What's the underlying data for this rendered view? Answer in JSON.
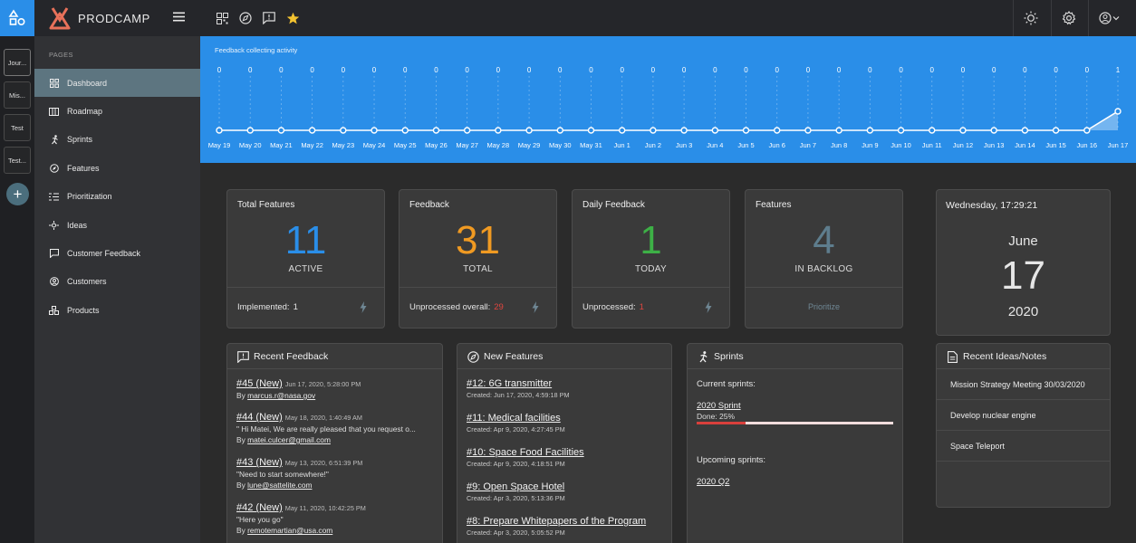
{
  "app": {
    "brand": "PRODCAMP"
  },
  "workspaces": [
    {
      "label": "Jour..."
    },
    {
      "label": "Mis..."
    },
    {
      "label": "Test"
    },
    {
      "label": "Test..."
    }
  ],
  "sidebar": {
    "section_label": "PAGES",
    "items": [
      {
        "label": "Dashboard",
        "icon": "dashboard-icon",
        "active": true
      },
      {
        "label": "Roadmap",
        "icon": "roadmap-icon"
      },
      {
        "label": "Sprints",
        "icon": "runner-icon"
      },
      {
        "label": "Features",
        "icon": "compass-icon"
      },
      {
        "label": "Prioritization",
        "icon": "prioritization-icon"
      },
      {
        "label": "Ideas",
        "icon": "ideas-icon"
      },
      {
        "label": "Customer Feedback",
        "icon": "feedback-icon"
      },
      {
        "label": "Customers",
        "icon": "user-icon"
      },
      {
        "label": "Products",
        "icon": "products-icon"
      }
    ]
  },
  "topbar": {
    "left_icons": [
      "grid-icon",
      "compass-icon",
      "feedback-icon",
      "star-icon"
    ],
    "right_icons": [
      "sun-icon",
      "gear-icon",
      "user-menu-icon"
    ]
  },
  "activity": {
    "title": "Feedback collecting activity",
    "dates": [
      "May 19",
      "May 20",
      "May 21",
      "May 22",
      "May 23",
      "May 24",
      "May 25",
      "May 26",
      "May 27",
      "May 28",
      "May 29",
      "May 30",
      "May 31",
      "Jun 1",
      "Jun 2",
      "Jun 3",
      "Jun 4",
      "Jun 5",
      "Jun 6",
      "Jun 7",
      "Jun 8",
      "Jun 9",
      "Jun 10",
      "Jun 11",
      "Jun 12",
      "Jun 13",
      "Jun 14",
      "Jun 15",
      "Jun 16",
      "Jun 17"
    ],
    "values": [
      0,
      0,
      0,
      0,
      0,
      0,
      0,
      0,
      0,
      0,
      0,
      0,
      0,
      0,
      0,
      0,
      0,
      0,
      0,
      0,
      0,
      0,
      0,
      0,
      0,
      0,
      0,
      0,
      0,
      1
    ]
  },
  "stats": [
    {
      "title": "Total Features",
      "value": "11",
      "sub": "ACTIVE",
      "color": "#2a8ee8",
      "foot_label": "Implemented:",
      "foot_value": "1",
      "foot_color": "#e6e6e6"
    },
    {
      "title": "Feedback",
      "value": "31",
      "sub": "TOTAL",
      "color": "#f09a22",
      "foot_label": "Unprocessed overall:",
      "foot_value": "29",
      "foot_color": "#e0463f"
    },
    {
      "title": "Daily Feedback",
      "value": "1",
      "sub": "TODAY",
      "color": "#3db046",
      "foot_label": "Unprocessed:",
      "foot_value": "1",
      "foot_color": "#e0463f"
    },
    {
      "title": "Features",
      "value": "4",
      "sub": "IN BACKLOG",
      "color": "#5e7d8d",
      "foot_action": "Prioritize"
    }
  ],
  "clock": {
    "time": "Wednesday, 17:29:21",
    "month": "June",
    "day": "17",
    "year": "2020"
  },
  "recent_feedback": {
    "title": "Recent Feedback",
    "items": [
      {
        "link": "#45 (New)",
        "date": "Jun 17, 2020, 5:28:00 PM",
        "by_prefix": "By",
        "by": "marcus.r@nasa.gov"
      },
      {
        "link": "#44 (New)",
        "date": "May 18, 2020, 1:40:49 AM",
        "quote": "\" Hi Matei, We are really pleased that you request o...",
        "by_prefix": "By",
        "by": "matei.culcer@gmail.com"
      },
      {
        "link": "#43 (New)",
        "date": "May 13, 2020, 6:51:39 PM",
        "quote": "\"Need to start somewhere!\"",
        "by_prefix": "By",
        "by": "lune@sattelite.com"
      },
      {
        "link": "#42 (New)",
        "date": "May 11, 2020, 10:42:25 PM",
        "quote": "\"Here you go\"",
        "by_prefix": "By",
        "by": "remotemartian@usa.com"
      }
    ]
  },
  "new_features": {
    "title": "New Features",
    "items": [
      {
        "link": "#12: 6G transmitter",
        "created": "Created: Jun 17, 2020, 4:59:18 PM"
      },
      {
        "link": "#11: Medical facilities",
        "created": "Created: Apr 9, 2020, 4:27:45 PM"
      },
      {
        "link": "#10: Space Food Facilities",
        "created": "Created: Apr 9, 2020, 4:18:51 PM"
      },
      {
        "link": "#9: Open Space Hotel",
        "created": "Created: Apr 3, 2020, 5:13:36 PM"
      },
      {
        "link": "#8: Prepare Whitepapers of the Program",
        "created": "Created: Apr 3, 2020, 5:05:52 PM"
      }
    ]
  },
  "sprints": {
    "title": "Sprints",
    "current_label": "Current sprints:",
    "current": {
      "name": "2020 Sprint",
      "done_text": "Done: 25%",
      "progress": 0.25,
      "progress_color": "#d9403c"
    },
    "upcoming_label": "Upcoming sprints:",
    "upcoming": [
      {
        "name": "2020 Q2"
      }
    ]
  },
  "ideas": {
    "title": "Recent Ideas/Notes",
    "items": [
      {
        "label": "Mission Strategy Meeting 30/03/2020"
      },
      {
        "label": "Develop nuclear engine"
      },
      {
        "label": "Space Teleport"
      }
    ]
  }
}
